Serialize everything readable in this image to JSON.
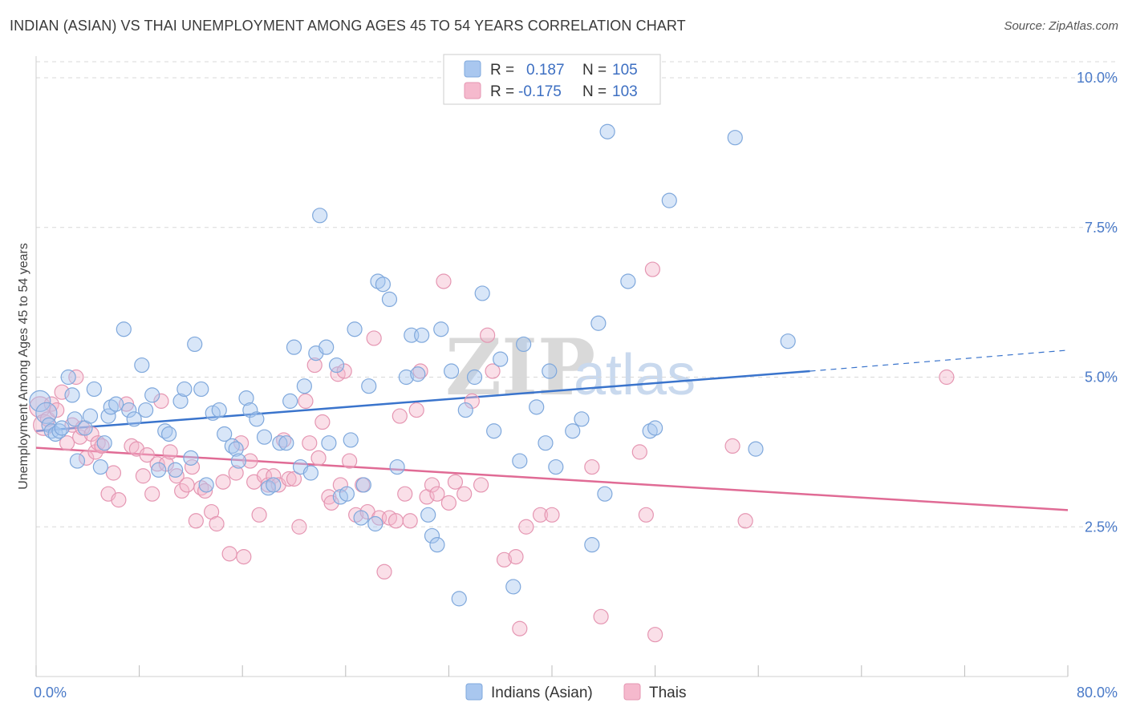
{
  "title": "INDIAN (ASIAN) VS THAI UNEMPLOYMENT AMONG AGES 45 TO 54 YEARS CORRELATION CHART",
  "source": "Source: ZipAtlas.com",
  "watermark": {
    "zip": "ZIP",
    "atlas": "atlas"
  },
  "colors": {
    "blue": "#3a74cc",
    "blue_fill": "#a9c7ef",
    "pink": "#e06b95",
    "pink_fill": "#f5b9cd",
    "tick_text": "#4a7ac8",
    "grid": "#d8d8d8"
  },
  "legend": {
    "rows": [
      {
        "r_label": "R =",
        "r_value": "0.187",
        "n_label": "N =",
        "n_value": "105",
        "color": "#a9c7ef"
      },
      {
        "r_label": "R =",
        "r_value": "-0.175",
        "n_label": "N =",
        "n_value": "103",
        "color": "#f5b9cd"
      }
    ]
  },
  "bottom_legend": [
    "Indians (Asian)",
    "Thais"
  ],
  "chart_data": {
    "type": "scatter",
    "title": "INDIAN (ASIAN) VS THAI UNEMPLOYMENT AMONG AGES 45 TO 54 YEARS CORRELATION CHART",
    "xlabel": "",
    "ylabel": "Unemployment Among Ages 45 to 54 years",
    "xlim": [
      0,
      80
    ],
    "ylim": [
      0,
      10.5
    ],
    "x_tick_labels": [
      "0.0%",
      "80.0%"
    ],
    "y_ticks": [
      2.5,
      5.0,
      7.5,
      10.0
    ],
    "y_tick_labels": [
      "2.5%",
      "5.0%",
      "7.5%",
      "10.0%"
    ],
    "grid": true,
    "legend_position": "top-center",
    "series": [
      {
        "name": "Indians (Asian)",
        "color": "#3a74cc",
        "trend": {
          "x": [
            0,
            60
          ],
          "y": [
            4.1,
            5.1
          ],
          "dashed_to": [
            80,
            5.45
          ]
        },
        "points": [
          [
            0.3,
            4.6
          ],
          [
            0.8,
            4.4
          ],
          [
            1.0,
            4.2
          ],
          [
            1.2,
            4.1
          ],
          [
            1.5,
            4.05
          ],
          [
            1.8,
            4.1
          ],
          [
            2.0,
            4.15
          ],
          [
            2.5,
            5.0
          ],
          [
            2.8,
            4.7
          ],
          [
            3.0,
            4.3
          ],
          [
            3.2,
            3.6
          ],
          [
            3.8,
            4.15
          ],
          [
            4.2,
            4.35
          ],
          [
            4.5,
            4.8
          ],
          [
            5.0,
            3.5
          ],
          [
            5.3,
            3.9
          ],
          [
            5.6,
            4.35
          ],
          [
            5.8,
            4.5
          ],
          [
            6.2,
            4.55
          ],
          [
            6.8,
            5.8
          ],
          [
            7.2,
            4.45
          ],
          [
            7.6,
            4.3
          ],
          [
            8.2,
            5.2
          ],
          [
            8.5,
            4.45
          ],
          [
            9.0,
            4.7
          ],
          [
            9.5,
            3.45
          ],
          [
            10.0,
            4.1
          ],
          [
            10.3,
            4.05
          ],
          [
            10.8,
            3.45
          ],
          [
            11.2,
            4.6
          ],
          [
            11.5,
            4.8
          ],
          [
            12.0,
            3.65
          ],
          [
            12.3,
            5.55
          ],
          [
            12.8,
            4.8
          ],
          [
            13.2,
            3.2
          ],
          [
            13.7,
            4.4
          ],
          [
            14.2,
            4.45
          ],
          [
            14.6,
            4.05
          ],
          [
            15.2,
            3.85
          ],
          [
            15.5,
            3.8
          ],
          [
            15.7,
            3.6
          ],
          [
            16.3,
            4.65
          ],
          [
            16.6,
            4.45
          ],
          [
            17.1,
            4.3
          ],
          [
            17.7,
            4.0
          ],
          [
            18.0,
            3.15
          ],
          [
            18.4,
            3.2
          ],
          [
            18.9,
            3.9
          ],
          [
            19.4,
            3.9
          ],
          [
            19.7,
            4.6
          ],
          [
            20.0,
            5.5
          ],
          [
            20.5,
            3.5
          ],
          [
            20.8,
            4.85
          ],
          [
            21.3,
            3.4
          ],
          [
            21.7,
            5.4
          ],
          [
            22.0,
            7.7
          ],
          [
            22.5,
            5.5
          ],
          [
            22.7,
            3.9
          ],
          [
            23.3,
            5.2
          ],
          [
            23.6,
            3.0
          ],
          [
            24.1,
            3.05
          ],
          [
            24.4,
            3.95
          ],
          [
            24.7,
            5.8
          ],
          [
            25.2,
            2.65
          ],
          [
            25.4,
            3.2
          ],
          [
            25.8,
            4.85
          ],
          [
            26.3,
            2.55
          ],
          [
            26.5,
            6.6
          ],
          [
            26.9,
            6.55
          ],
          [
            27.4,
            6.3
          ],
          [
            28.0,
            3.5
          ],
          [
            28.7,
            5.0
          ],
          [
            29.1,
            5.7
          ],
          [
            29.6,
            5.05
          ],
          [
            29.9,
            5.7
          ],
          [
            30.4,
            2.7
          ],
          [
            30.7,
            2.35
          ],
          [
            31.1,
            2.2
          ],
          [
            31.4,
            5.8
          ],
          [
            32.2,
            5.1
          ],
          [
            32.8,
            1.3
          ],
          [
            33.3,
            4.45
          ],
          [
            34.0,
            5.0
          ],
          [
            34.6,
            6.4
          ],
          [
            35.5,
            4.1
          ],
          [
            36.0,
            5.3
          ],
          [
            37.0,
            1.5
          ],
          [
            37.5,
            3.6
          ],
          [
            37.8,
            5.55
          ],
          [
            38.8,
            4.5
          ],
          [
            39.5,
            3.9
          ],
          [
            39.8,
            5.1
          ],
          [
            40.3,
            3.5
          ],
          [
            41.6,
            4.1
          ],
          [
            42.3,
            4.3
          ],
          [
            43.1,
            2.2
          ],
          [
            43.6,
            5.9
          ],
          [
            44.1,
            3.05
          ],
          [
            44.3,
            9.1
          ],
          [
            45.9,
            6.6
          ],
          [
            47.6,
            4.1
          ],
          [
            48.0,
            4.15
          ],
          [
            49.1,
            7.95
          ],
          [
            54.2,
            9.0
          ],
          [
            55.8,
            3.8
          ],
          [
            58.3,
            5.6
          ]
        ]
      },
      {
        "name": "Thais",
        "color": "#e06b95",
        "trend": {
          "x": [
            0,
            80
          ],
          "y": [
            3.82,
            2.78
          ]
        },
        "points": [
          [
            0.3,
            4.5
          ],
          [
            0.6,
            4.2
          ],
          [
            0.9,
            4.3
          ],
          [
            1.2,
            4.55
          ],
          [
            1.6,
            4.45
          ],
          [
            2.0,
            4.75
          ],
          [
            2.4,
            3.9
          ],
          [
            2.8,
            4.2
          ],
          [
            3.1,
            5.0
          ],
          [
            3.4,
            4.0
          ],
          [
            3.6,
            4.15
          ],
          [
            3.9,
            3.65
          ],
          [
            4.3,
            4.05
          ],
          [
            4.6,
            3.75
          ],
          [
            4.8,
            3.9
          ],
          [
            5.1,
            3.85
          ],
          [
            5.6,
            3.05
          ],
          [
            6.0,
            3.4
          ],
          [
            6.4,
            2.95
          ],
          [
            7.0,
            4.55
          ],
          [
            7.4,
            3.85
          ],
          [
            7.8,
            3.8
          ],
          [
            8.3,
            3.35
          ],
          [
            8.6,
            3.7
          ],
          [
            9.0,
            3.05
          ],
          [
            9.4,
            3.55
          ],
          [
            9.7,
            4.6
          ],
          [
            10.1,
            3.55
          ],
          [
            10.4,
            3.75
          ],
          [
            10.9,
            3.35
          ],
          [
            11.3,
            3.1
          ],
          [
            11.7,
            3.2
          ],
          [
            12.1,
            3.5
          ],
          [
            12.4,
            2.6
          ],
          [
            12.8,
            3.15
          ],
          [
            13.1,
            3.1
          ],
          [
            13.6,
            2.75
          ],
          [
            14.0,
            2.55
          ],
          [
            14.5,
            3.25
          ],
          [
            15.0,
            2.05
          ],
          [
            15.5,
            3.4
          ],
          [
            15.9,
            3.9
          ],
          [
            16.1,
            2.0
          ],
          [
            16.6,
            3.6
          ],
          [
            16.9,
            3.25
          ],
          [
            17.3,
            2.7
          ],
          [
            17.7,
            3.35
          ],
          [
            18.0,
            3.2
          ],
          [
            18.4,
            3.35
          ],
          [
            18.8,
            3.2
          ],
          [
            19.2,
            3.95
          ],
          [
            19.6,
            3.3
          ],
          [
            20.0,
            3.3
          ],
          [
            20.4,
            2.5
          ],
          [
            20.9,
            4.6
          ],
          [
            21.2,
            3.9
          ],
          [
            21.6,
            5.2
          ],
          [
            21.9,
            3.65
          ],
          [
            22.2,
            4.25
          ],
          [
            22.7,
            3.0
          ],
          [
            22.9,
            2.9
          ],
          [
            23.4,
            5.05
          ],
          [
            23.6,
            3.2
          ],
          [
            23.9,
            5.1
          ],
          [
            24.3,
            3.6
          ],
          [
            24.8,
            2.7
          ],
          [
            25.3,
            3.2
          ],
          [
            25.7,
            2.75
          ],
          [
            26.2,
            5.65
          ],
          [
            26.6,
            2.65
          ],
          [
            27.0,
            1.75
          ],
          [
            27.4,
            2.65
          ],
          [
            27.9,
            2.6
          ],
          [
            28.2,
            4.35
          ],
          [
            28.6,
            3.05
          ],
          [
            29.0,
            2.6
          ],
          [
            29.5,
            4.45
          ],
          [
            29.8,
            5.1
          ],
          [
            30.3,
            3.0
          ],
          [
            30.7,
            3.2
          ],
          [
            31.1,
            3.05
          ],
          [
            31.6,
            6.6
          ],
          [
            32.0,
            2.9
          ],
          [
            32.5,
            3.25
          ],
          [
            33.2,
            3.05
          ],
          [
            33.8,
            4.6
          ],
          [
            34.5,
            3.2
          ],
          [
            35.0,
            5.7
          ],
          [
            35.4,
            5.1
          ],
          [
            36.3,
            1.95
          ],
          [
            37.2,
            2.0
          ],
          [
            37.5,
            0.8
          ],
          [
            38.0,
            2.5
          ],
          [
            39.1,
            2.7
          ],
          [
            40.0,
            2.7
          ],
          [
            43.1,
            3.5
          ],
          [
            43.8,
            1.0
          ],
          [
            46.8,
            3.75
          ],
          [
            47.3,
            2.7
          ],
          [
            47.8,
            6.8
          ],
          [
            48.0,
            0.7
          ],
          [
            54.0,
            3.85
          ],
          [
            55.0,
            2.6
          ],
          [
            70.6,
            5.0
          ]
        ]
      }
    ]
  }
}
